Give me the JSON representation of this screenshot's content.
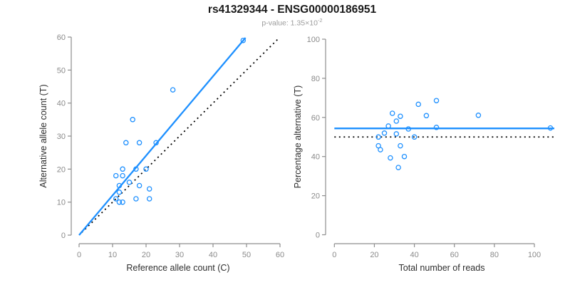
{
  "header": {
    "title": "rs41329344 - ENSG00000186951",
    "p_value_text": "p-value: 1.35×10",
    "p_value_exponent": "-2"
  },
  "colors": {
    "accent_blue": "#1E90FF",
    "reference_line": "#000000",
    "axis": "#8e8e8e",
    "tick_label": "#8a8a8a",
    "axis_title": "#2e2e2e",
    "title": "#1a1a1a",
    "subtitle": "#9b9b9b"
  },
  "chart_data": [
    {
      "type": "scatter",
      "name": "allele-counts",
      "xlabel": "Reference allele count (C)",
      "ylabel": "Alternative allele count (T)",
      "xlim": [
        0,
        60
      ],
      "ylim": [
        0,
        60
      ],
      "xticks": [
        0,
        10,
        20,
        30,
        40,
        50,
        60
      ],
      "yticks": [
        0,
        10,
        20,
        30,
        40,
        50,
        60
      ],
      "grid": false,
      "legend": "none",
      "points": [
        [
          49,
          59
        ],
        [
          28,
          44
        ],
        [
          16,
          35
        ],
        [
          14,
          28
        ],
        [
          18,
          28
        ],
        [
          23,
          28
        ],
        [
          13,
          20
        ],
        [
          17,
          20
        ],
        [
          20,
          20
        ],
        [
          11,
          18
        ],
        [
          13,
          18
        ],
        [
          12,
          15
        ],
        [
          15,
          16
        ],
        [
          18,
          15
        ],
        [
          21,
          14
        ],
        [
          12,
          13
        ],
        [
          11,
          11
        ],
        [
          12,
          10
        ],
        [
          13,
          10
        ],
        [
          17,
          11
        ],
        [
          21,
          11
        ]
      ],
      "fit_line": {
        "label": "fitted ratio, slope 1.2",
        "x1": 0,
        "y1": 0,
        "x2": 49.7,
        "y2": 59.8,
        "style": "solid"
      },
      "identity_line": {
        "label": "y = x",
        "x1": 0.8,
        "y1": 0.8,
        "x2": 59.5,
        "y2": 59.5,
        "style": "dotted"
      }
    },
    {
      "type": "scatter",
      "name": "percentage-vs-depth",
      "xlabel": "Total number of reads",
      "ylabel": "Percentage alternative (T)",
      "xlim": [
        0,
        110
      ],
      "ylim": [
        0,
        100
      ],
      "xticks": [
        0,
        20,
        40,
        60,
        80,
        100
      ],
      "yticks": [
        0,
        20,
        40,
        60,
        80,
        100
      ],
      "grid": false,
      "legend": "none",
      "points": [
        [
          108,
          54.6
        ],
        [
          72,
          61.1
        ],
        [
          51,
          68.6
        ],
        [
          42,
          66.7
        ],
        [
          46,
          60.9
        ],
        [
          51,
          54.9
        ],
        [
          33,
          60.6
        ],
        [
          37,
          54.1
        ],
        [
          40,
          50.0
        ],
        [
          29,
          62.1
        ],
        [
          31,
          58.1
        ],
        [
          27,
          55.6
        ],
        [
          31,
          51.6
        ],
        [
          33,
          45.5
        ],
        [
          35,
          40.0
        ],
        [
          25,
          52.0
        ],
        [
          22,
          50.0
        ],
        [
          22,
          45.5
        ],
        [
          23,
          43.5
        ],
        [
          28,
          39.3
        ],
        [
          32,
          34.4
        ]
      ],
      "mean_line": {
        "label": "mean percentage 54.4",
        "y": 54.4,
        "style": "solid"
      },
      "null_line": {
        "label": "50 percent",
        "y": 50,
        "style": "dotted"
      }
    }
  ]
}
